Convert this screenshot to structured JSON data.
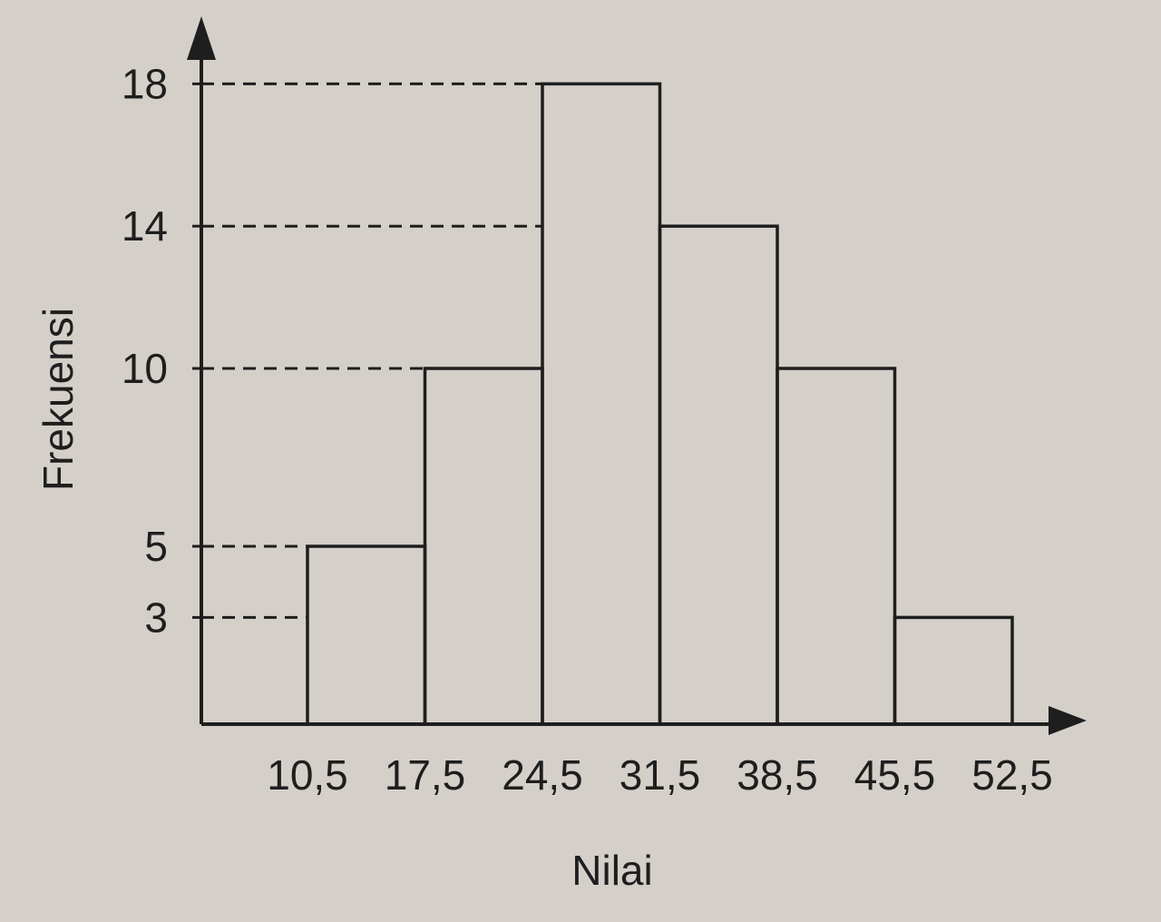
{
  "chart_data": {
    "type": "histogram",
    "title": "",
    "xlabel": "Nilai",
    "ylabel": "Frekuensi",
    "bin_edges": [
      10.5,
      17.5,
      24.5,
      31.5,
      38.5,
      45.5,
      52.5
    ],
    "x_tick_labels": [
      "10,5",
      "17,5",
      "24,5",
      "31,5",
      "38,5",
      "45,5",
      "52,5"
    ],
    "values": [
      5,
      10,
      18,
      14,
      10,
      3
    ],
    "y_ticks": [
      3,
      5,
      10,
      14,
      18
    ],
    "y_tick_labels": [
      "3",
      "5",
      "10",
      "14",
      "18"
    ],
    "reference_lines": "dashed",
    "grid": false,
    "colors": {
      "paper": "#d4d0c9",
      "ink": "#1e1e1e"
    }
  }
}
